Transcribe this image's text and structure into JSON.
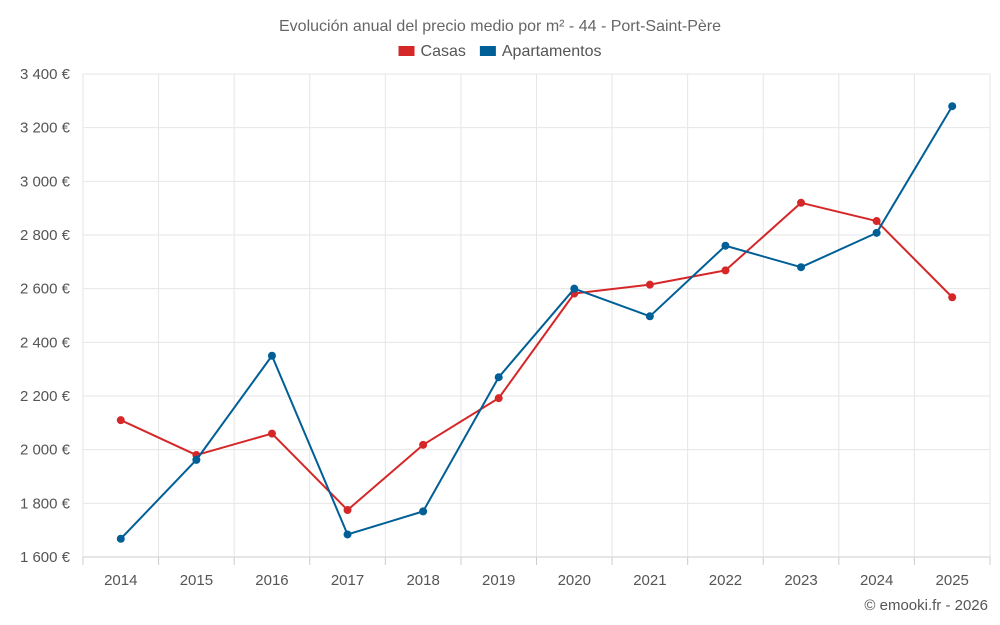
{
  "chart_data": {
    "type": "line",
    "title": "Evolución anual del precio medio por m² - 44 - Port-Saint-Père",
    "categories": [
      "2014",
      "2015",
      "2016",
      "2017",
      "2018",
      "2019",
      "2020",
      "2021",
      "2022",
      "2023",
      "2024",
      "2025"
    ],
    "series": [
      {
        "name": "Casas",
        "color": "#d62728",
        "values": [
          2110,
          1980,
          2060,
          1775,
          2018,
          2192,
          2582,
          2615,
          2668,
          2920,
          2852,
          2568
        ]
      },
      {
        "name": "Apartamentos",
        "color": "#005f96",
        "values": [
          1668,
          1962,
          2350,
          1684,
          1770,
          2270,
          2600,
          2497,
          2760,
          2680,
          2808,
          3280
        ]
      }
    ],
    "ylim": [
      1600,
      3400
    ],
    "yticks": [
      1600,
      1800,
      2000,
      2200,
      2400,
      2600,
      2800,
      3000,
      3200,
      3400
    ],
    "ytick_labels": [
      "1 600 €",
      "1 800 €",
      "2 000 €",
      "2 200 €",
      "2 400 €",
      "2 600 €",
      "2 800 €",
      "3 000 €",
      "3 200 €",
      "3 400 €"
    ],
    "grid": true,
    "legend_position": "top-center",
    "xlabel": "",
    "ylabel": ""
  },
  "credit": "© emooki.fr - 2026"
}
